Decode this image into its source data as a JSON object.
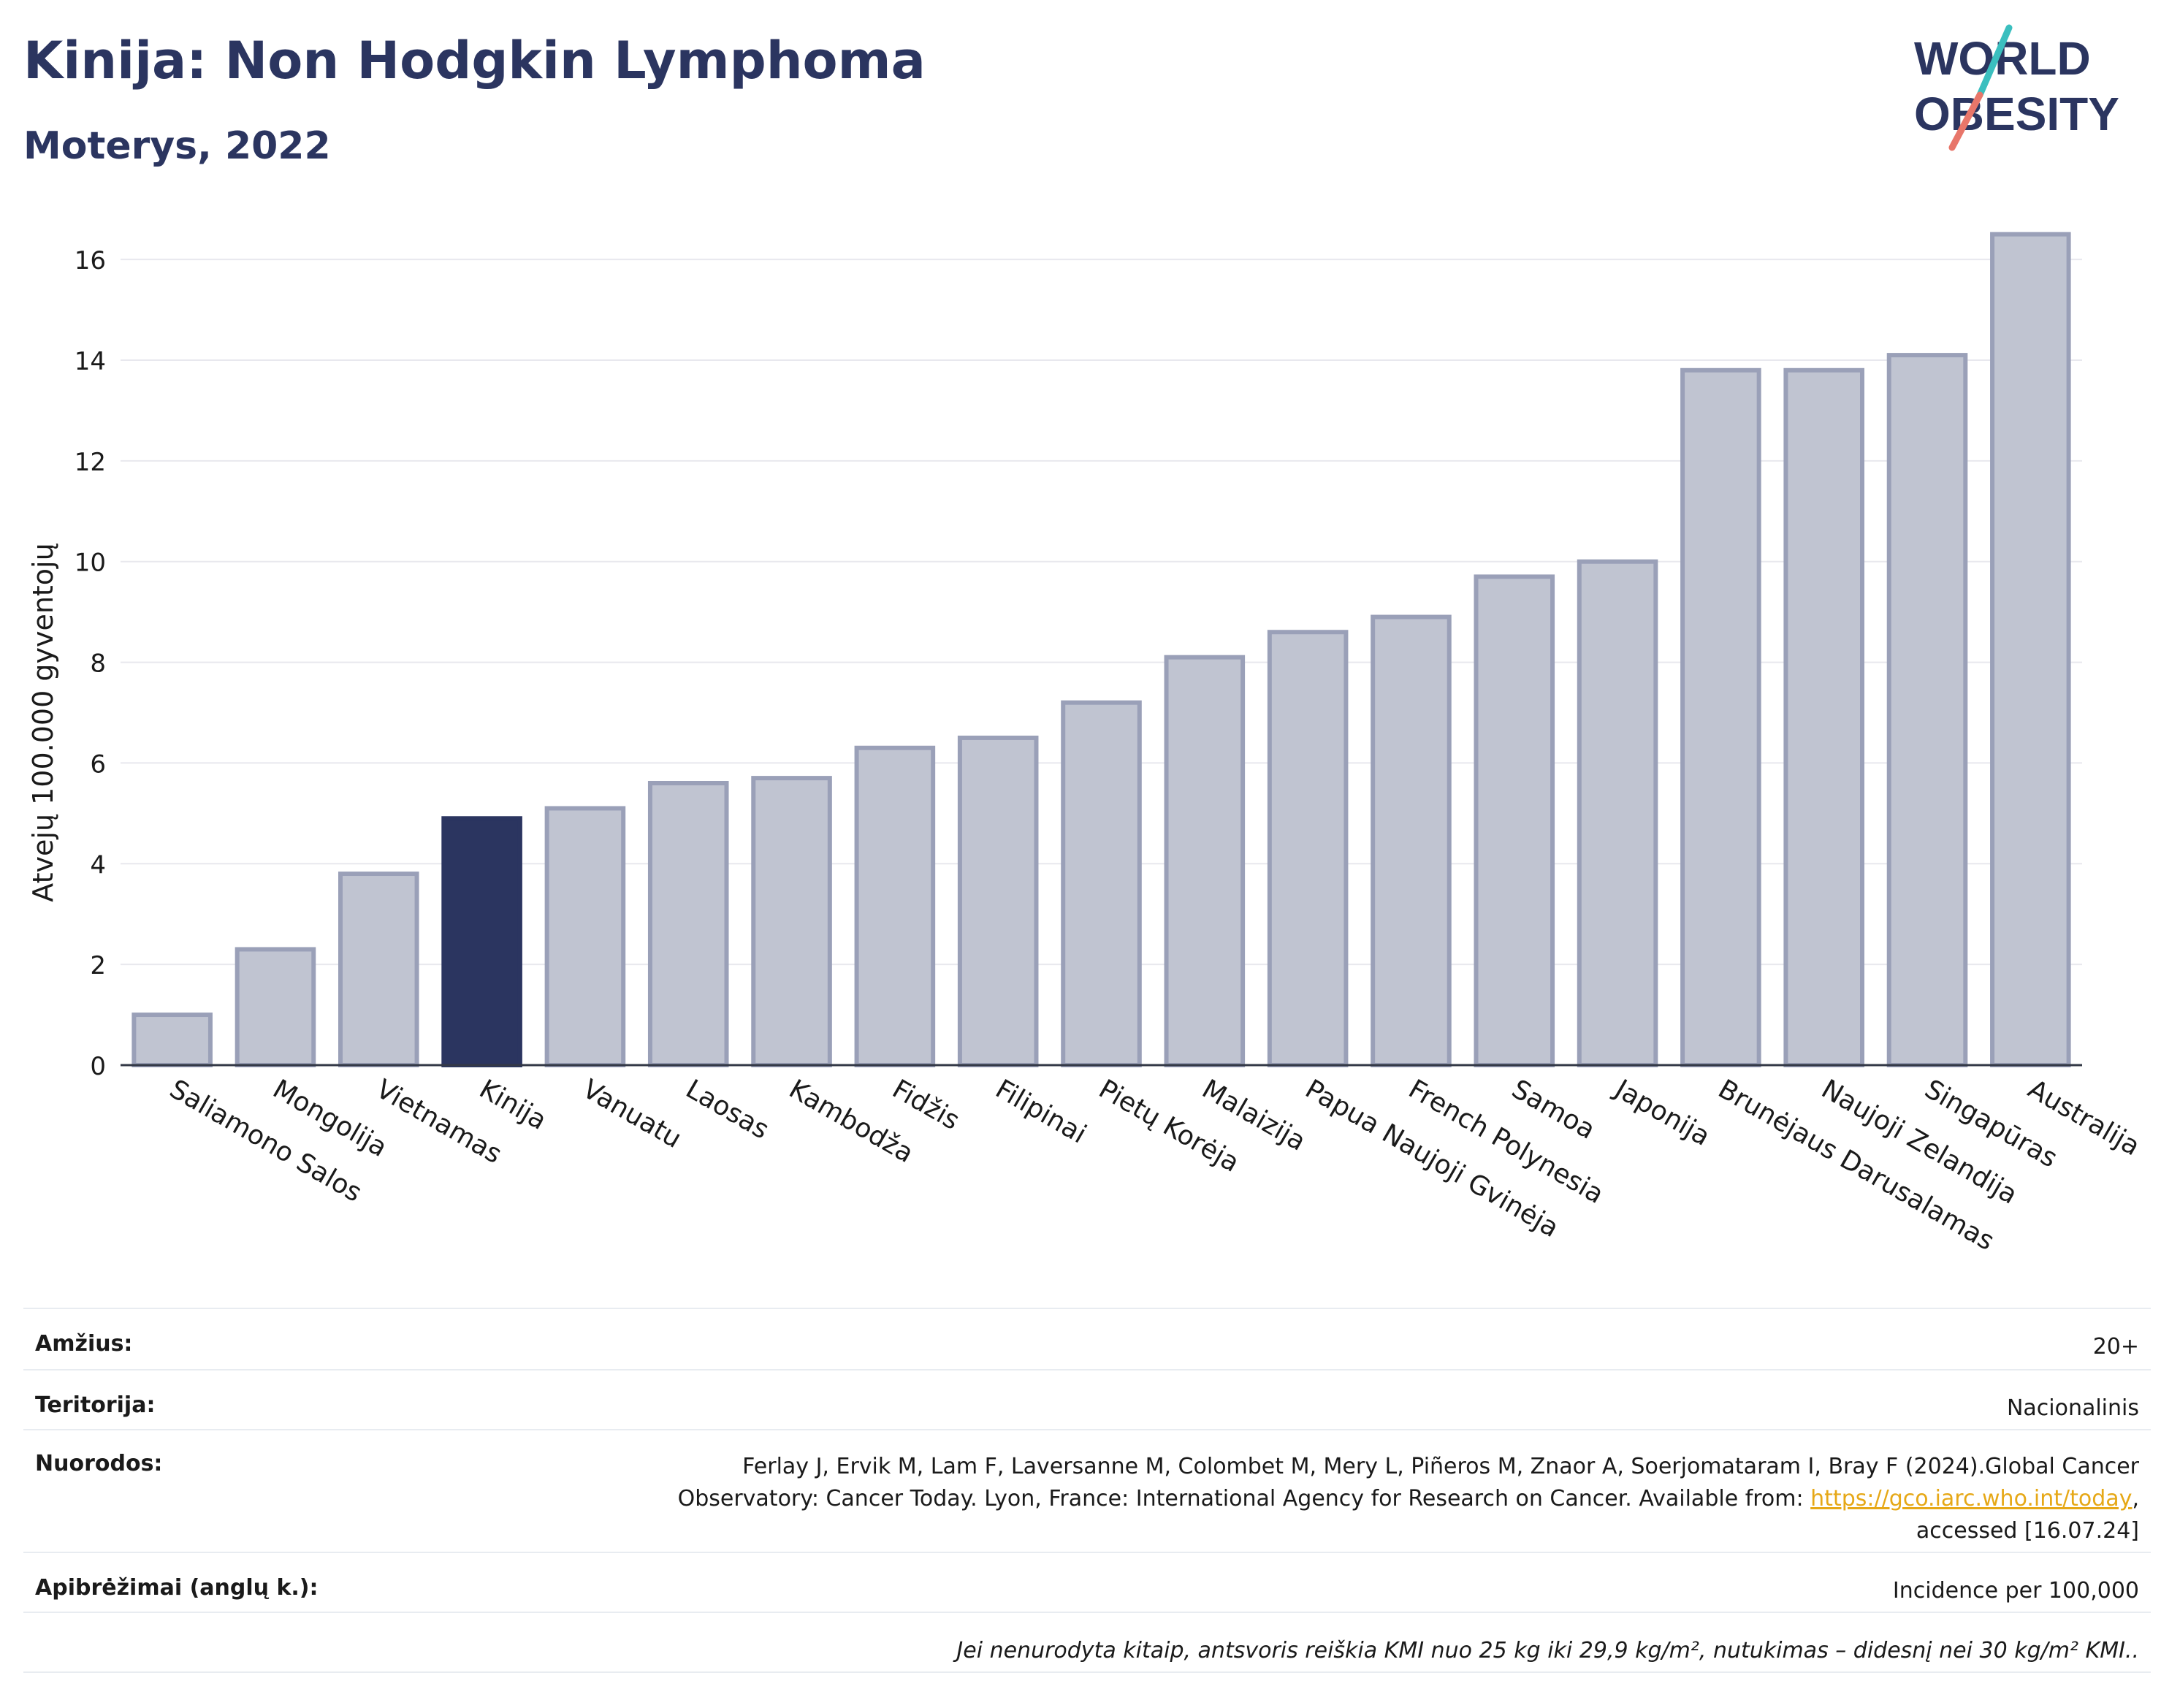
{
  "header": {
    "title": "Kinija: Non Hodgkin Lymphoma",
    "subtitle": "Moterys, 2022"
  },
  "logo": {
    "line1": "WORLD",
    "line2": "OBESITY"
  },
  "colors": {
    "highlight": "#2b3560",
    "bar": "#c0c4d1",
    "bar_stroke": "#9aa0b8",
    "grid": "#e8e8ee"
  },
  "chart_data": {
    "type": "bar",
    "ylabel": "Atvejų 100.000 gyventojų",
    "ylim": [
      0,
      16.8
    ],
    "yticks": [
      0,
      2,
      4,
      6,
      8,
      10,
      12,
      14,
      16
    ],
    "grid": true,
    "highlight": "Kinija",
    "categories": [
      "Saliamono Salos",
      "Mongolija",
      "Vietnamas",
      "Kinija",
      "Vanuatu",
      "Laosas",
      "Kambodža",
      "Fidžis",
      "Filipinai",
      "Pietų Korėja",
      "Malaizija",
      "Papua Naujoji Gvinėja",
      "French Polynesia",
      "Samoa",
      "Japonija",
      "Brunėjaus Darusalamas",
      "Naujoji Zelandija",
      "Singapūras",
      "Australija"
    ],
    "values": [
      1.0,
      2.3,
      3.8,
      4.9,
      5.1,
      5.6,
      5.7,
      6.3,
      6.5,
      7.2,
      8.1,
      8.6,
      8.9,
      9.7,
      10.0,
      13.8,
      13.8,
      14.1,
      16.5
    ]
  },
  "meta": {
    "age_label": "Amžius:",
    "age_value": "20+",
    "territory_label": "Teritorija:",
    "territory_value": "Nacionalinis",
    "refs_label": "Nuorodos:",
    "refs_line1": "Ferlay J, Ervik M, Lam F, Laversanne M, Colombet M, Mery L, Piñeros M, Znaor A, Soerjomataram I, Bray F (2024).Global Cancer",
    "refs_line2": "Observatory: Cancer Today. Lyon, France: International Agency for Research on Cancer. Available from:",
    "refs_link": "https://gco.iarc.who.int/today",
    "refs_line3": "accessed [16.07.24]",
    "defs_label": "Apibrėžimai (anglų k.):",
    "defs_value": "Incidence per 100,000",
    "note": "Jei nenurodyta kitaip, antsvoris reiškia KMI nuo 25 kg iki 29,9 kg/m², nutukimas – didesnį nei 30 kg/m² KMI.."
  }
}
